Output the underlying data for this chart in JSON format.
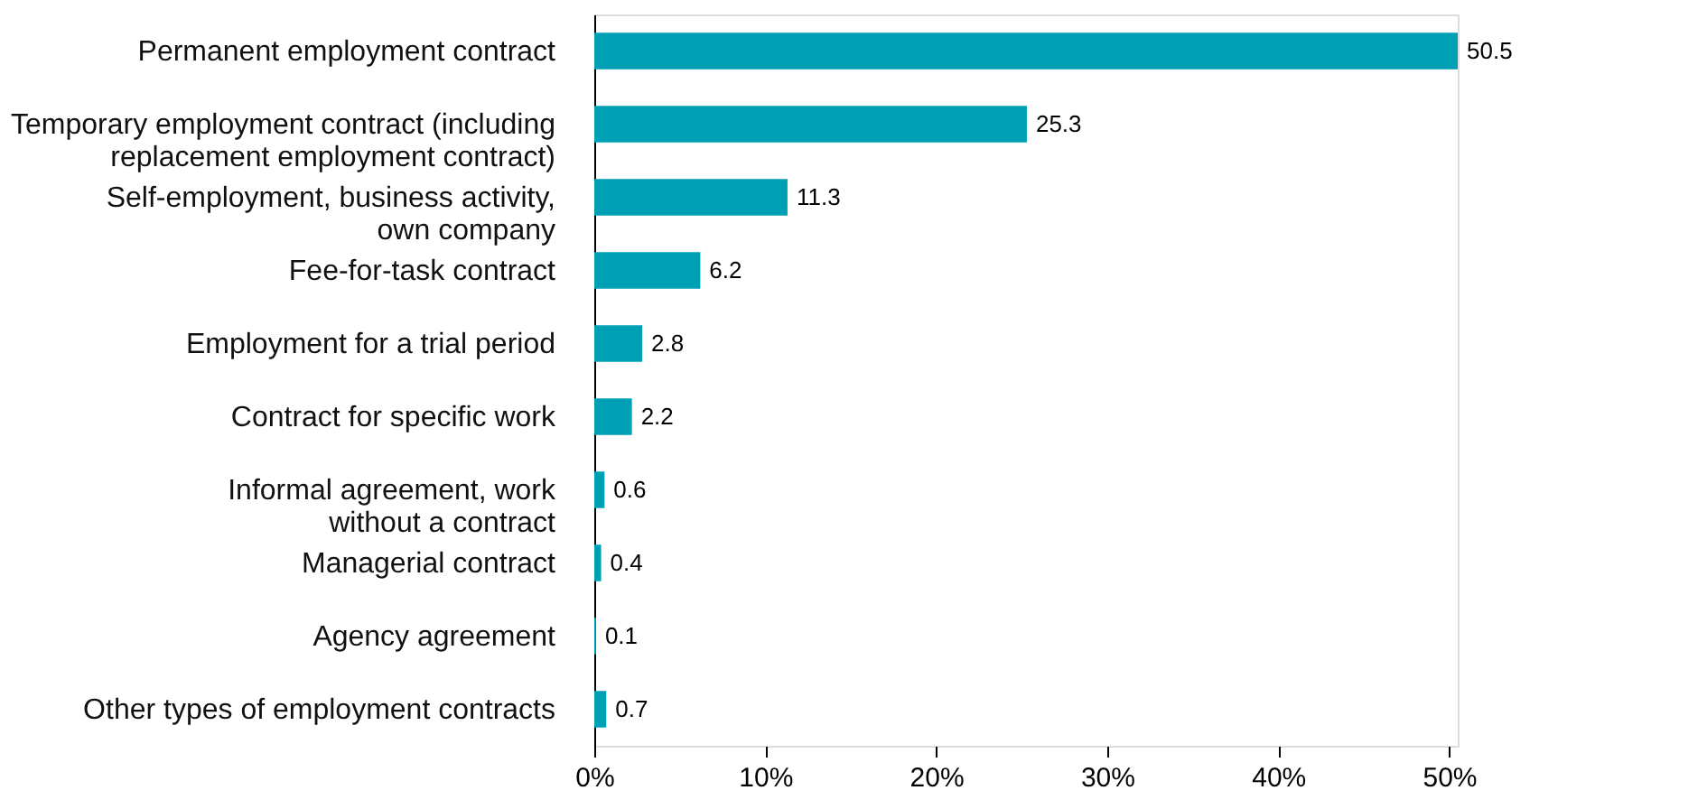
{
  "chart_data": {
    "type": "bar",
    "orientation": "horizontal",
    "categories": [
      "Permanent employment contract",
      "Temporary employment contract (including\nreplacement employment contract)",
      "Self-employment, business activity,\nown company",
      "Fee-for-task contract",
      "Employment for a trial period",
      "Contract for specific work",
      "Informal agreement, work\nwithout a contract",
      "Managerial contract",
      "Agency agreement",
      "Other types of employment contracts"
    ],
    "values": [
      50.5,
      25.3,
      11.3,
      6.2,
      2.8,
      2.2,
      0.6,
      0.4,
      0.1,
      0.7
    ],
    "color": "#00a0b4",
    "xlim": [
      0,
      50.5
    ],
    "xticks": [
      {
        "value": 0,
        "label": "0%"
      },
      {
        "value": 10,
        "label": "10%"
      },
      {
        "value": 20,
        "label": "20%"
      },
      {
        "value": 30,
        "label": "30%"
      },
      {
        "value": 40,
        "label": "40%"
      },
      {
        "value": 50,
        "label": "50%"
      }
    ],
    "data_labels": true,
    "grid": false
  }
}
